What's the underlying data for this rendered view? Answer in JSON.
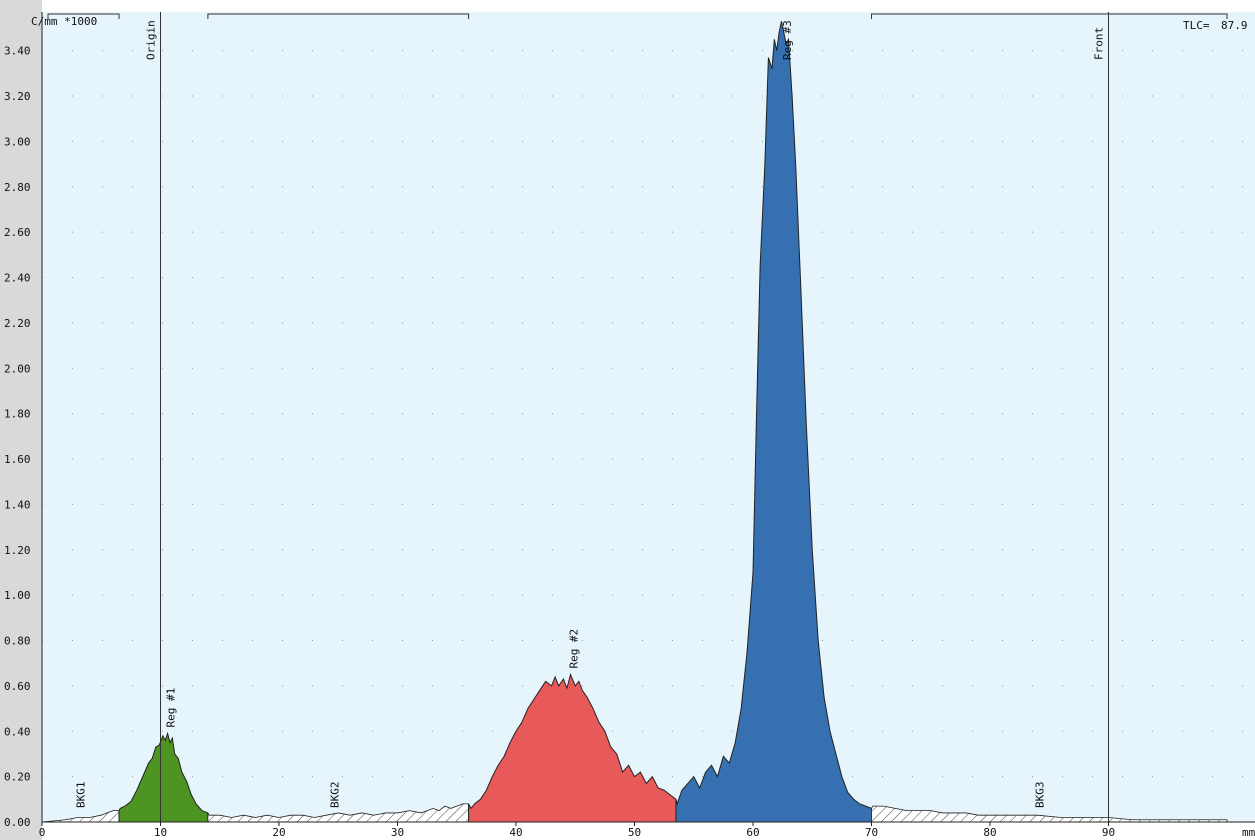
{
  "colors": {
    "plot_bg": "#e6f4fc",
    "left_margin_bg": "#d9d9d9",
    "region1": "#4d9422",
    "region2": "#e85a5a",
    "region3": "#3670b0",
    "background_fill": "#ffffff",
    "outline": "#222222"
  },
  "chart_data": {
    "type": "area",
    "title": "",
    "ylabel": "C/mm *1000",
    "xlabel_unit": "mm",
    "xlim": [
      0,
      100
    ],
    "ylim": [
      0,
      3.5
    ],
    "x_ticks": [
      "0",
      "10",
      "20",
      "30",
      "40",
      "50",
      "60",
      "70",
      "80",
      "90",
      "mm"
    ],
    "y_ticks": [
      "0.00",
      "0.20",
      "0.40",
      "0.60",
      "0.80",
      "1.00",
      "1.20",
      "1.40",
      "1.60",
      "1.80",
      "2.00",
      "2.20",
      "2.40",
      "2.60",
      "2.80",
      "3.00",
      "3.20",
      "3.40"
    ],
    "grid": "dotted",
    "tlc_label": "TLC=",
    "tlc_value": "87.9",
    "markers": [
      {
        "name": "Origin",
        "x": 10
      },
      {
        "name": "Front",
        "x": 90
      }
    ],
    "regions": [
      {
        "label": "BKG1",
        "kind": "background",
        "x_start": 0,
        "x_end": 6.5,
        "label_x": 3.6
      },
      {
        "label": "Reg #1",
        "kind": "peak",
        "color_key": "region1",
        "x_start": 6.5,
        "x_end": 14,
        "label_x": 11.2
      },
      {
        "label": "BKG2",
        "kind": "background",
        "x_start": 14,
        "x_end": 36,
        "label_x": 25
      },
      {
        "label": "Reg #2",
        "kind": "peak",
        "color_key": "region2",
        "x_start": 36,
        "x_end": 53.5,
        "label_x": 45.2
      },
      {
        "label": "Reg #3",
        "kind": "peak",
        "color_key": "region3",
        "x_start": 53.5,
        "x_end": 70,
        "label_x": 63.2
      },
      {
        "label": "BKG3",
        "kind": "background",
        "x_start": 70,
        "x_end": 100,
        "label_x": 84.5
      }
    ],
    "series": [
      {
        "x": [
          0,
          2,
          3,
          4,
          5,
          5.5,
          6,
          6.5,
          6.6,
          7,
          7.5,
          8,
          8.5,
          9,
          9.3,
          9.6,
          9.9,
          10.2,
          10.4,
          10.6,
          10.8,
          11,
          11.2,
          11.5,
          11.8,
          12.2,
          12.6,
          13,
          13.5,
          14,
          14.1,
          15,
          16,
          17,
          18,
          19,
          20,
          21,
          22,
          23,
          24,
          25,
          26,
          27,
          28,
          29,
          30,
          31,
          32,
          33,
          33.5,
          34,
          34.5,
          35,
          35.5,
          36,
          36.2,
          36.5,
          37,
          37.5,
          38,
          38.5,
          39,
          39.5,
          40,
          40.5,
          41,
          41.5,
          42,
          42.5,
          43,
          43.3,
          43.6,
          44,
          44.3,
          44.6,
          45,
          45.3,
          45.6,
          46,
          46.5,
          47,
          47.5,
          48,
          48.5,
          49,
          49.5,
          50,
          50.5,
          51,
          51.5,
          52,
          52.5,
          53,
          53.5,
          53.6,
          54,
          54.5,
          55,
          55.5,
          56,
          56.5,
          57,
          57.5,
          58,
          58.5,
          59,
          59.5,
          60,
          60.3,
          60.6,
          61,
          61.3,
          61.6,
          61.8,
          62,
          62.2,
          62.4,
          62.6,
          62.8,
          63,
          63.3,
          63.6,
          64,
          64.5,
          65,
          65.5,
          66,
          66.5,
          67,
          67.5,
          68,
          68.5,
          69,
          69.5,
          70,
          70.1,
          71,
          72,
          73,
          74,
          75,
          76,
          77,
          78,
          79,
          80,
          82,
          84,
          86,
          88,
          90,
          92,
          94,
          96,
          98,
          100
        ],
        "y": [
          0.0,
          0.01,
          0.02,
          0.02,
          0.03,
          0.04,
          0.05,
          0.05,
          0.06,
          0.07,
          0.09,
          0.14,
          0.2,
          0.26,
          0.28,
          0.33,
          0.34,
          0.38,
          0.36,
          0.39,
          0.35,
          0.37,
          0.3,
          0.28,
          0.22,
          0.18,
          0.12,
          0.08,
          0.05,
          0.04,
          0.03,
          0.03,
          0.02,
          0.03,
          0.02,
          0.03,
          0.02,
          0.03,
          0.03,
          0.02,
          0.03,
          0.04,
          0.03,
          0.04,
          0.03,
          0.04,
          0.04,
          0.05,
          0.04,
          0.06,
          0.05,
          0.07,
          0.06,
          0.07,
          0.08,
          0.08,
          0.06,
          0.08,
          0.1,
          0.14,
          0.2,
          0.25,
          0.29,
          0.35,
          0.4,
          0.44,
          0.5,
          0.54,
          0.58,
          0.62,
          0.6,
          0.64,
          0.6,
          0.63,
          0.59,
          0.65,
          0.6,
          0.62,
          0.58,
          0.55,
          0.5,
          0.44,
          0.4,
          0.33,
          0.3,
          0.22,
          0.25,
          0.2,
          0.22,
          0.17,
          0.2,
          0.15,
          0.14,
          0.12,
          0.1,
          0.08,
          0.14,
          0.17,
          0.2,
          0.15,
          0.22,
          0.25,
          0.2,
          0.29,
          0.26,
          0.35,
          0.5,
          0.75,
          1.1,
          1.8,
          2.45,
          2.9,
          3.37,
          3.32,
          3.45,
          3.4,
          3.48,
          3.53,
          3.48,
          3.43,
          3.45,
          3.2,
          2.9,
          2.4,
          1.75,
          1.2,
          0.8,
          0.55,
          0.4,
          0.3,
          0.2,
          0.13,
          0.1,
          0.08,
          0.07,
          0.06,
          0.07,
          0.07,
          0.06,
          0.05,
          0.05,
          0.05,
          0.04,
          0.04,
          0.04,
          0.03,
          0.03,
          0.03,
          0.03,
          0.02,
          0.02,
          0.02,
          0.01,
          0.01,
          0.01,
          0.01,
          0.01
        ]
      }
    ]
  }
}
